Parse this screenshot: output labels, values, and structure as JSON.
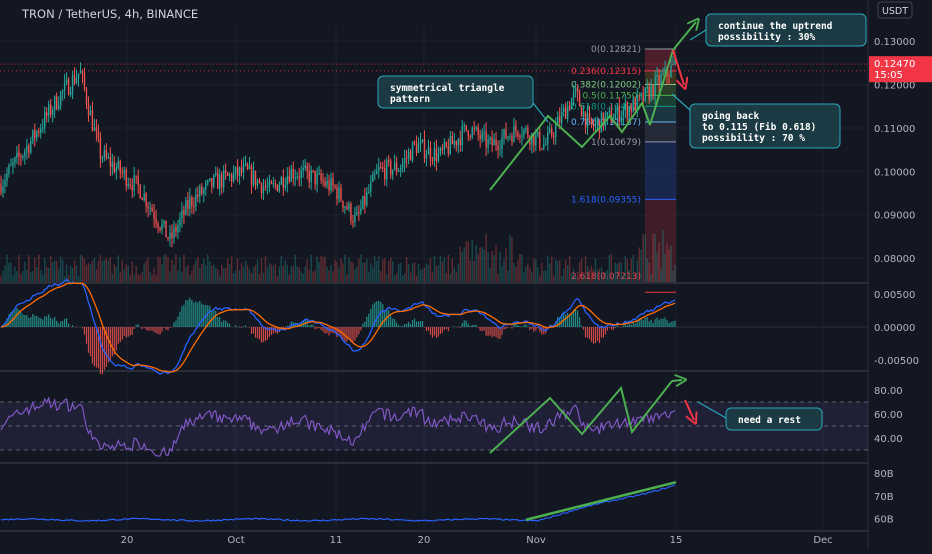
{
  "header": {
    "symbol_title": "TRON / TetherUS, 4h, BINANCE",
    "currency_button": "USDT"
  },
  "price_tag": {
    "value": "0.12470",
    "countdown": "15:05",
    "color": "#f23645"
  },
  "colors": {
    "background": "#131722",
    "up": "#26a69a",
    "down": "#ef5350",
    "annotation": "#4caf50",
    "arrow_down": "#f23645",
    "callout_bg": "#1c3a43",
    "callout_border": "#2aa6b8",
    "macd_line": "#2962ff",
    "signal_line": "#ff6d00",
    "rsi_line": "#7e57c2",
    "volume_line": "#2962ff"
  },
  "chart_data": [
    {
      "type": "candlestick",
      "panel": "price",
      "ylim": [
        0.0745,
        0.1335
      ],
      "y_ticks": [
        "0.13000",
        "0.12000",
        "0.11000",
        "0.10000",
        "0.09000",
        "0.08000"
      ],
      "x_ticks": [
        "20",
        "Oct",
        "11",
        "20",
        "Nov",
        "15",
        "Dec"
      ],
      "anchors": {
        "start": 0.097,
        "peak_mid_sept": 0.123,
        "late_sept_low": 0.084,
        "mid_oct": 0.1,
        "late_oct_low": 0.0885,
        "early_nov_high": 0.11,
        "pre_breakout_low": 0.106,
        "last": 0.1247
      },
      "fibonacci": [
        {
          "label": "0(0.12821)",
          "value": 0.12821,
          "color": "#9598a1"
        },
        {
          "label": "0.236(0.12315)",
          "value": 0.12315,
          "color": "#f23645"
        },
        {
          "label": "0.382(0.12002)",
          "value": 0.12002,
          "color": "#81c784"
        },
        {
          "label": "0.5(0.11750)",
          "value": 0.1175,
          "color": "#4caf50"
        },
        {
          "label": "0.618(0.11497)",
          "value": 0.11497,
          "color": "#089981"
        },
        {
          "label": "0.786(0.11137)",
          "value": 0.11137,
          "color": "#64b5f6"
        },
        {
          "label": "1(0.10679)",
          "value": 0.10679,
          "color": "#9598a1"
        },
        {
          "label": "1.618(0.09355)",
          "value": 0.09355,
          "color": "#2962ff"
        },
        {
          "label": "2.618(0.07213)",
          "value": 0.07213,
          "color": "#f23645"
        }
      ],
      "annotations": [
        {
          "id": "triangle",
          "text": "symmetrical triangle\npattern"
        },
        {
          "id": "uptrend",
          "text": "continue the uptrend\npossibility : 30%"
        },
        {
          "id": "going-back",
          "text": "going back\nto 0.115 (Fib 0.618)\npossibility : 70 %"
        }
      ]
    },
    {
      "type": "line",
      "panel": "macd",
      "ylim": [
        -0.0065,
        0.0065
      ],
      "y_ticks": [
        "0.00500",
        "0.00000",
        "-0.00500"
      ],
      "series": [
        {
          "values": "MACD"
        },
        {
          "values": "signal"
        }
      ]
    },
    {
      "type": "line",
      "panel": "rsi",
      "ylim": [
        20,
        95
      ],
      "y_ticks": [
        "80.00",
        "60.00",
        "40.00"
      ],
      "bands": [
        70,
        30
      ],
      "annotation": "need a rest"
    },
    {
      "type": "line",
      "panel": "volume",
      "ylim": [
        55,
        84
      ],
      "y_ticks": [
        "80B",
        "70B",
        "60B"
      ]
    }
  ]
}
